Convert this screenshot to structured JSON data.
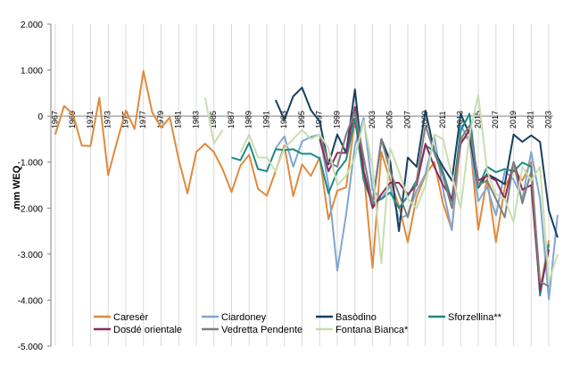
{
  "chart_data": {
    "type": "line",
    "title": "",
    "xlabel": "",
    "ylabel": "mm WEQ",
    "ylim": [
      -5000,
      2000
    ],
    "xlim": [
      1967,
      2023
    ],
    "grid": "vertical-major",
    "legend_position": "bottom",
    "y_ticks": [
      {
        "value": 2000,
        "label": "2.000"
      },
      {
        "value": 1000,
        "label": "1.000"
      },
      {
        "value": 0,
        "label": "0"
      },
      {
        "value": -1000,
        "label": "-1.000"
      },
      {
        "value": -2000,
        "label": "-2.000"
      },
      {
        "value": -3000,
        "label": "-3.000"
      },
      {
        "value": -4000,
        "label": "-4.000"
      },
      {
        "value": -5000,
        "label": "-5.000"
      }
    ],
    "x_ticks": [
      {
        "value": 1967,
        "label": "1967"
      },
      {
        "value": 1969,
        "label": "1969"
      },
      {
        "value": 1971,
        "label": "1971"
      },
      {
        "value": 1973,
        "label": "1973"
      },
      {
        "value": 1975,
        "label": "1975"
      },
      {
        "value": 1977,
        "label": "1977"
      },
      {
        "value": 1979,
        "label": "1979"
      },
      {
        "value": 1981,
        "label": "1981"
      },
      {
        "value": 1983,
        "label": "1983"
      },
      {
        "value": 1985,
        "label": "1985"
      },
      {
        "value": 1987,
        "label": "1987"
      },
      {
        "value": 1989,
        "label": "1989"
      },
      {
        "value": 1991,
        "label": "1991"
      },
      {
        "value": 1993,
        "label": "1993"
      },
      {
        "value": 1995,
        "label": "1995"
      },
      {
        "value": 1997,
        "label": "1997"
      },
      {
        "value": 1999,
        "label": "1999"
      },
      {
        "value": 2001,
        "label": "2001"
      },
      {
        "value": 2003,
        "label": "2003"
      },
      {
        "value": 2005,
        "label": "2005"
      },
      {
        "value": 2007,
        "label": "2007"
      },
      {
        "value": 2009,
        "label": "2009"
      },
      {
        "value": 2011,
        "label": "2011"
      },
      {
        "value": 2013,
        "label": "2013"
      },
      {
        "value": 2015,
        "label": "2015"
      },
      {
        "value": 2017,
        "label": "2017"
      },
      {
        "value": 2019,
        "label": "2019"
      },
      {
        "value": 2021,
        "label": "2021"
      },
      {
        "value": 2023,
        "label": "2023"
      }
    ],
    "series": [
      {
        "name": "Caresèr",
        "color": "#E08A3C",
        "start": 1967,
        "values": [
          -400,
          220,
          50,
          -640,
          -650,
          400,
          -1280,
          -560,
          120,
          -280,
          980,
          80,
          -250,
          -30,
          -940,
          -1680,
          -780,
          -600,
          -780,
          -1160,
          -1650,
          -1080,
          -840,
          -1580,
          -1730,
          -1200,
          -640,
          -1740,
          -1050,
          -1300,
          -900,
          -2240,
          -1620,
          -1550,
          -60,
          -1200,
          -3300,
          -780,
          -1400,
          -1950,
          -2740,
          -1760,
          -1280,
          -1000,
          -1900,
          -2470,
          -520,
          -440,
          -2470,
          -1360,
          -2740,
          -1540,
          -1170,
          -1400,
          -1000,
          -3800,
          -2700
        ]
      },
      {
        "name": "Ciardoney",
        "color": "#7FA7D1",
        "start": 1992,
        "values": [
          -700,
          -440,
          -1100,
          -550,
          -450,
          -400,
          -1500,
          -3360,
          -2140,
          -640,
          -40,
          -1600,
          -1800,
          -1520,
          -2240,
          -2140,
          -1620,
          -1260,
          -440,
          -1600,
          -2480,
          -200,
          -550,
          -1850,
          -1540,
          -2160,
          -1200,
          -1380,
          -1800,
          -780,
          -1800,
          -3980,
          -2150
        ]
      },
      {
        "name": "Basòdino",
        "color": "#17405E",
        "start": 1992,
        "values": [
          350,
          -80,
          430,
          620,
          130,
          -120,
          -1050,
          -400,
          -800,
          580,
          -1200,
          -1940,
          -500,
          -980,
          -2500,
          -900,
          -1100,
          120,
          -760,
          -1100,
          -1400,
          50,
          -400,
          -1560,
          -1260,
          -1360,
          -1480,
          -400,
          -560,
          -420,
          -560,
          -2050,
          -2640
        ]
      },
      {
        "name": "Sforzellina**",
        "color": "#1D8A86",
        "start": 1987,
        "values": [
          -900,
          -960,
          -580,
          -1150,
          -1200,
          -720,
          -740,
          -720,
          -820,
          -820,
          -920,
          -1680,
          -1200,
          -950,
          -50,
          -1400,
          -1900,
          -1800,
          -1660,
          -2000,
          -1740,
          -1400,
          -640,
          -760,
          -1220,
          -1850,
          -320,
          50,
          -1550,
          -1100,
          -1220,
          -1150,
          -1200,
          -1010,
          -1100,
          -3900,
          -2780
        ]
      },
      {
        "name": "Dosdé orientale",
        "color": "#8B2D5B",
        "start": 1997,
        "values": [
          -500,
          -1200,
          -800,
          -800,
          200,
          -1200,
          -2000,
          -1700,
          -1450,
          -1450,
          -1700,
          -1500,
          -600,
          -1100,
          -1500,
          -1800,
          -600,
          -300,
          -1400,
          -1300,
          -1400,
          -1800,
          -1000,
          -1600,
          -1500,
          -3800,
          -2900
        ]
      },
      {
        "name": "Vedretta Pendente",
        "color": "#7F7F7F",
        "start": 1997,
        "values": [
          -400,
          -1000,
          -1100,
          -400,
          100,
          -900,
          -1900,
          -500,
          -1200,
          -1700,
          -2200,
          -1400,
          -200,
          -800,
          -1300,
          -2000,
          -500,
          -200,
          -1500,
          -1400,
          -1800,
          -2200,
          -1000,
          -1900,
          -1200,
          -3600,
          -3700
        ]
      },
      {
        "name": "Fontana Bianca*",
        "color": "#C9DEB1",
        "start": 1984,
        "values": [
          400,
          -600,
          -300,
          null,
          -800,
          -400,
          -900,
          -900,
          -1200,
          -700,
          -500,
          -300,
          -500,
          -400,
          -700,
          -1500,
          -1300,
          -900,
          -100,
          -1100,
          -3200,
          -700,
          -1200,
          -1800,
          -2000,
          -1500,
          -400,
          -500,
          -1300,
          -2000,
          -400,
          460,
          -1200,
          -1700,
          -1800,
          -2300,
          -1100,
          -1400,
          -1100,
          -3600,
          -3000
        ]
      }
    ]
  }
}
